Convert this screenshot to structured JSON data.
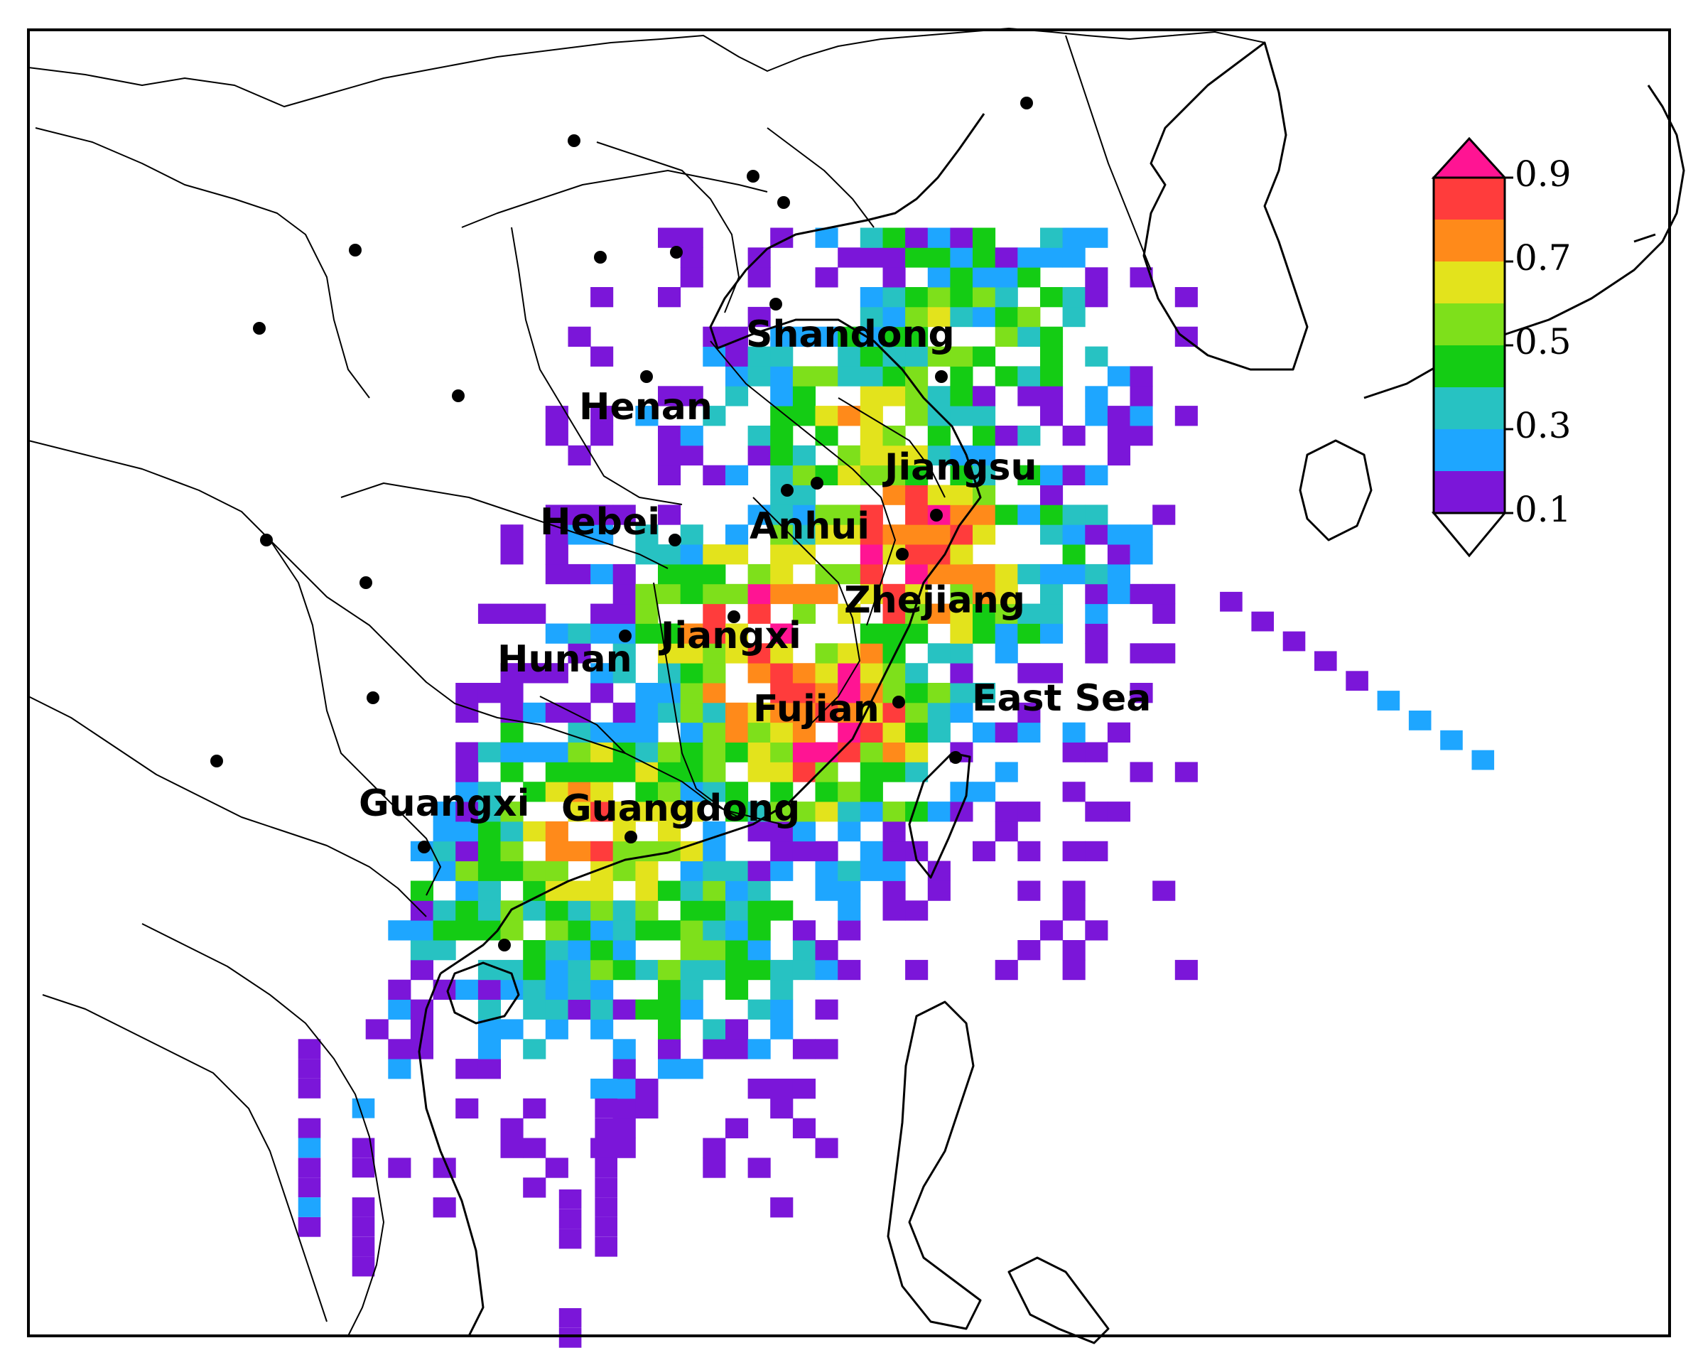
{
  "colorbar": {
    "tick_labels": [
      "0.9",
      "0.7",
      "0.5",
      "0.3",
      "0.1"
    ],
    "colors": [
      "#ffffff",
      "#7b16d9",
      "#1ea6ff",
      "#27c2c2",
      "#14cc14",
      "#7ee01b",
      "#e3e31c",
      "#ff8a1a",
      "#ff3c3c",
      "#ff1493"
    ]
  },
  "region_labels": [
    "Shandong",
    "Henan",
    "Jiangsu",
    "Hebei",
    "Anhui",
    "Zhejiang",
    "Jiangxi",
    "Hunan",
    "Fujian",
    "East Sea",
    "Guangxi",
    "Guangdong"
  ],
  "grid_field": {
    "clusters": [
      {
        "lon": 118.5,
        "lat": 31.5,
        "value": 0.88
      },
      {
        "lon": 116.5,
        "lat": 27.5,
        "value": 0.9
      },
      {
        "lon": 115.0,
        "lat": 29.5,
        "value": 0.82
      },
      {
        "lon": 111.5,
        "lat": 24.5,
        "value": 0.72
      },
      {
        "lon": 117.5,
        "lat": 34.5,
        "value": 0.6
      },
      {
        "lon": 113.0,
        "lat": 22.0,
        "value": 0.48
      },
      {
        "lon": 110.0,
        "lat": 22.5,
        "value": 0.5
      },
      {
        "lon": 119.5,
        "lat": 37.5,
        "value": 0.45
      }
    ]
  }
}
